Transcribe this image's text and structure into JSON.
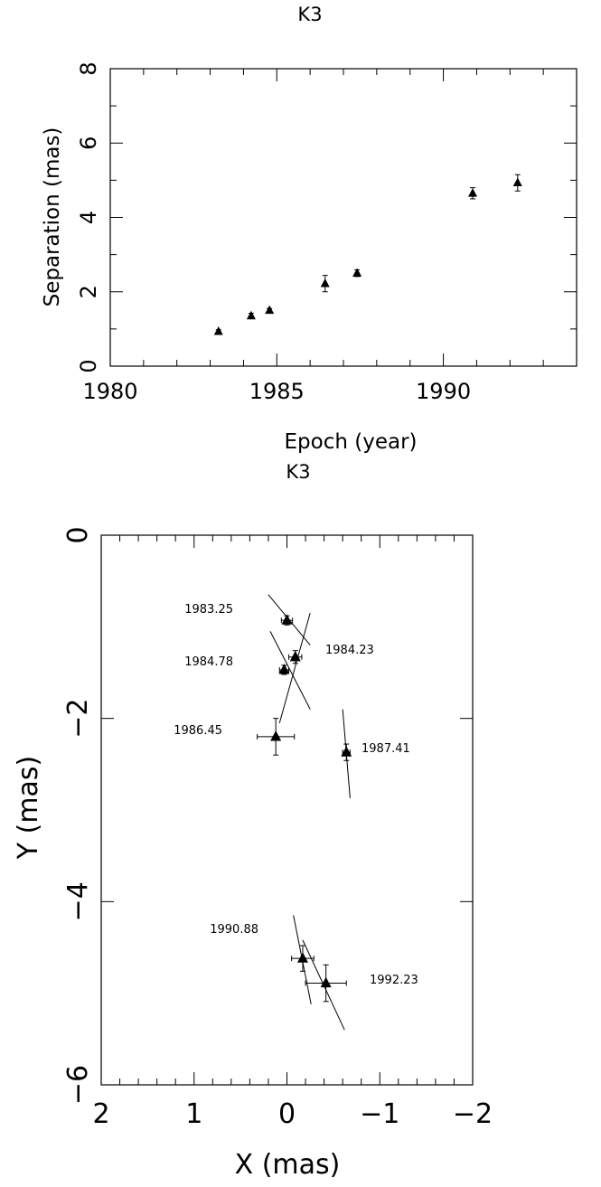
{
  "chart_data": [
    {
      "type": "scatter",
      "title": "K3",
      "xlabel": "Epoch (year)",
      "ylabel": "Separation (mas)",
      "xlim": [
        1980,
        1994
      ],
      "ylim": [
        0,
        8
      ],
      "x_ticks": [
        "1980",
        "1985",
        "1990"
      ],
      "y_ticks": [
        "0",
        "2",
        "4",
        "6",
        "8"
      ],
      "series": [
        {
          "marker": "filled-triangle",
          "points": [
            {
              "x": 1983.25,
              "y": 0.93,
              "err": 0.05
            },
            {
              "x": 1984.23,
              "y": 1.35,
              "err": 0.07
            },
            {
              "x": 1984.78,
              "y": 1.5,
              "err": 0.05
            },
            {
              "x": 1986.45,
              "y": 2.22,
              "err": 0.22
            },
            {
              "x": 1987.41,
              "y": 2.5,
              "err": 0.09
            },
            {
              "x": 1990.88,
              "y": 4.65,
              "err": 0.15
            },
            {
              "x": 1992.23,
              "y": 4.93,
              "err": 0.22
            }
          ]
        }
      ]
    },
    {
      "type": "scatter",
      "title": "K3",
      "xlabel": "X (mas)",
      "ylabel": "Y (mas)",
      "xlim": [
        2,
        -2
      ],
      "ylim": [
        -6,
        0
      ],
      "x_ticks": [
        "2",
        "1",
        "0",
        "−1",
        "−2"
      ],
      "y_ticks": [
        "−6",
        "−4",
        "−2",
        "0"
      ],
      "series": [
        {
          "marker": "filled-triangle",
          "points": [
            {
              "label": "1983.25",
              "x": 0.0,
              "y": -0.93,
              "xerr": 0.06,
              "yerr": 0.05,
              "line": [
                [
                  0.2,
                  -0.65
                ],
                [
                  -0.25,
                  -1.2
                ]
              ]
            },
            {
              "label": "1984.23",
              "x": -0.09,
              "y": -1.33,
              "xerr": 0.07,
              "yerr": 0.07,
              "line": [
                [
                  0.18,
                  -1.05
                ],
                [
                  -0.25,
                  -1.9
                ]
              ]
            },
            {
              "label": "1984.78",
              "x": 0.03,
              "y": -1.47,
              "xerr": 0.05,
              "yerr": 0.05,
              "line": [
                [
                  0.08,
                  -2.05
                ],
                [
                  -0.25,
                  -0.85
                ]
              ]
            },
            {
              "label": "1986.45",
              "x": 0.12,
              "y": -2.2,
              "xerr": 0.2,
              "yerr": 0.2
            },
            {
              "label": "1987.41",
              "x": -0.64,
              "y": -2.37,
              "xerr": 0.04,
              "yerr": 0.09,
              "line": [
                [
                  -0.6,
                  -1.9
                ],
                [
                  -0.68,
                  -2.87
                ]
              ]
            },
            {
              "label": "1990.88",
              "x": -0.17,
              "y": -4.62,
              "xerr": 0.12,
              "yerr": 0.14,
              "line": [
                [
                  -0.07,
                  -4.15
                ],
                [
                  -0.26,
                  -5.12
                ]
              ]
            },
            {
              "label": "1992.23",
              "x": -0.42,
              "y": -4.89,
              "xerr": 0.22,
              "yerr": 0.2,
              "line": [
                [
                  -0.17,
                  -4.42
                ],
                [
                  -0.62,
                  -5.4
                ]
              ]
            }
          ]
        }
      ]
    }
  ]
}
